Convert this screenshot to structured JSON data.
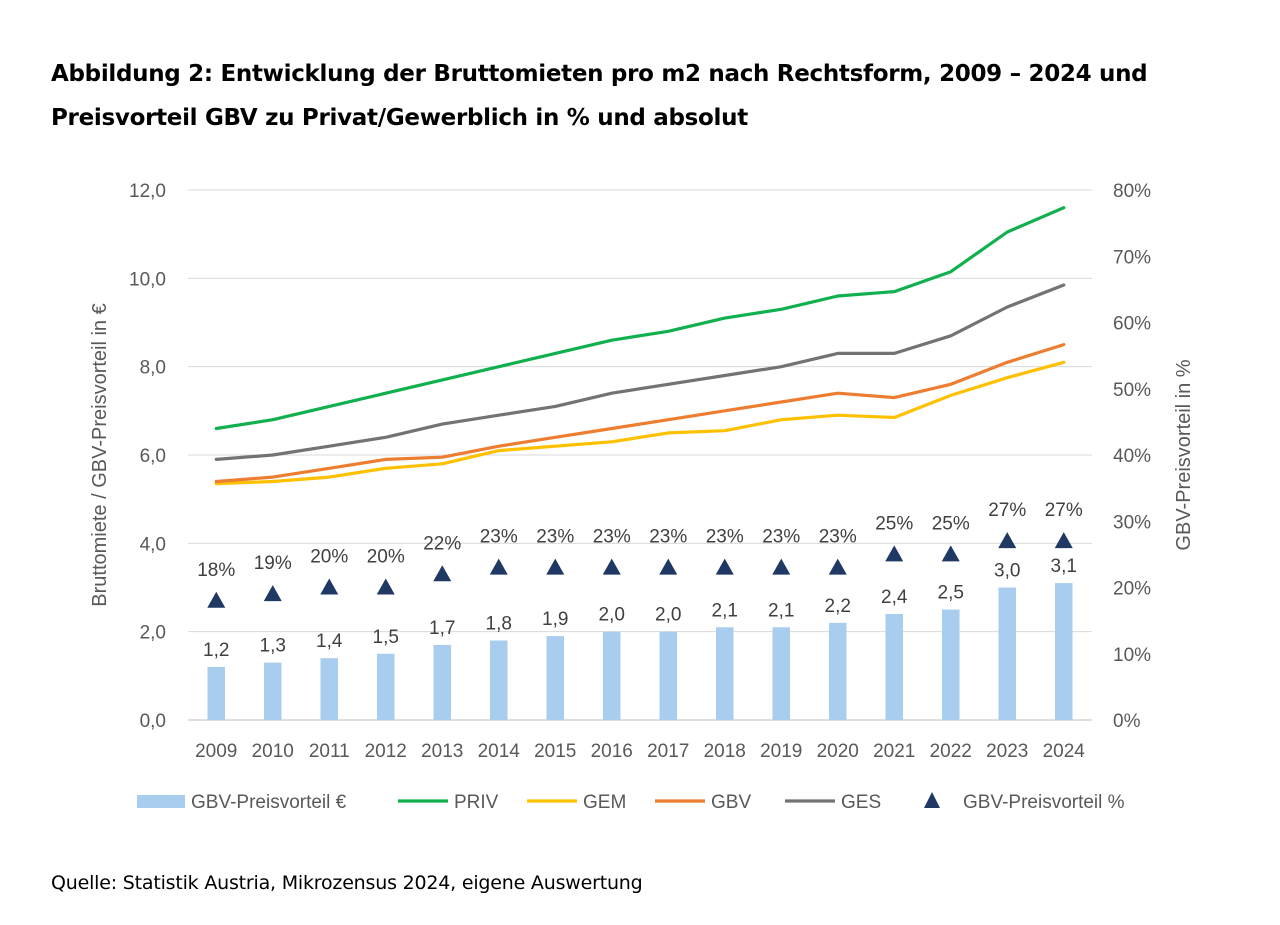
{
  "title": {
    "line1": "Abbildung 2: Entwicklung der Bruttomieten pro m2 nach Rechtsform, 2009 – 2024 und",
    "line2": "Preisvorteil GBV zu Privat/Gewerblich in % und absolut"
  },
  "source": "Quelle: Statistik Austria, Mikrozensus 2024, eigene Auswertung",
  "chart_data": {
    "type": "bar",
    "categories": [
      "2009",
      "2010",
      "2011",
      "2012",
      "2013",
      "2014",
      "2015",
      "2016",
      "2017",
      "2018",
      "2019",
      "2020",
      "2021",
      "2022",
      "2023",
      "2024"
    ],
    "ylabel": "Bruttomiete / GBV-Preisvorteil in €",
    "y2label": "GBV-Preisvorteil in %",
    "ylim": [
      0,
      12
    ],
    "y2lim": [
      0,
      80
    ],
    "yticks": [
      "0,0",
      "2,0",
      "4,0",
      "6,0",
      "8,0",
      "10,0",
      "12,0"
    ],
    "y2ticks": [
      "0%",
      "10%",
      "20%",
      "30%",
      "40%",
      "50%",
      "60%",
      "70%",
      "80%"
    ],
    "grid": true,
    "legend_position": "bottom",
    "bars": {
      "name": "GBV-Preisvorteil €",
      "color": "#a9cdee",
      "values": [
        1.2,
        1.3,
        1.4,
        1.5,
        1.7,
        1.8,
        1.9,
        2.0,
        2.0,
        2.1,
        2.1,
        2.2,
        2.4,
        2.5,
        3.0,
        3.1
      ],
      "labels": [
        "1,2",
        "1,3",
        "1,4",
        "1,5",
        "1,7",
        "1,8",
        "1,9",
        "2,0",
        "2,0",
        "2,1",
        "2,1",
        "2,2",
        "2,4",
        "2,5",
        "3,0",
        "3,1"
      ]
    },
    "series": [
      {
        "name": "PRIV",
        "color": "#11b04f",
        "values": [
          6.6,
          6.8,
          7.1,
          7.4,
          7.7,
          8.0,
          8.3,
          8.6,
          8.8,
          9.1,
          9.3,
          9.6,
          9.7,
          10.15,
          11.05,
          11.6
        ]
      },
      {
        "name": "GEM",
        "color": "#ffc000",
        "values": [
          5.35,
          5.4,
          5.5,
          5.7,
          5.8,
          6.1,
          6.2,
          6.3,
          6.5,
          6.55,
          6.8,
          6.9,
          6.85,
          7.35,
          7.75,
          8.1
        ]
      },
      {
        "name": "GBV",
        "color": "#ed7d31",
        "values": [
          5.4,
          5.5,
          5.7,
          5.9,
          5.95,
          6.2,
          6.4,
          6.6,
          6.8,
          7.0,
          7.2,
          7.4,
          7.3,
          7.6,
          8.1,
          8.5
        ]
      },
      {
        "name": "GES",
        "color": "#737373",
        "values": [
          5.9,
          6.0,
          6.2,
          6.4,
          6.7,
          6.9,
          7.1,
          7.4,
          7.6,
          7.8,
          8.0,
          8.3,
          8.3,
          8.7,
          9.35,
          9.85
        ]
      }
    ],
    "markers": {
      "name": "GBV-Preisvorteil %",
      "color": "#1f3864",
      "axis": "secondary",
      "values": [
        18,
        19,
        20,
        20,
        22,
        23,
        23,
        23,
        23,
        23,
        23,
        23,
        25,
        25,
        27,
        27
      ],
      "labels": [
        "18%",
        "19%",
        "20%",
        "20%",
        "22%",
        "23%",
        "23%",
        "23%",
        "23%",
        "23%",
        "23%",
        "23%",
        "25%",
        "25%",
        "27%",
        "27%"
      ]
    }
  }
}
